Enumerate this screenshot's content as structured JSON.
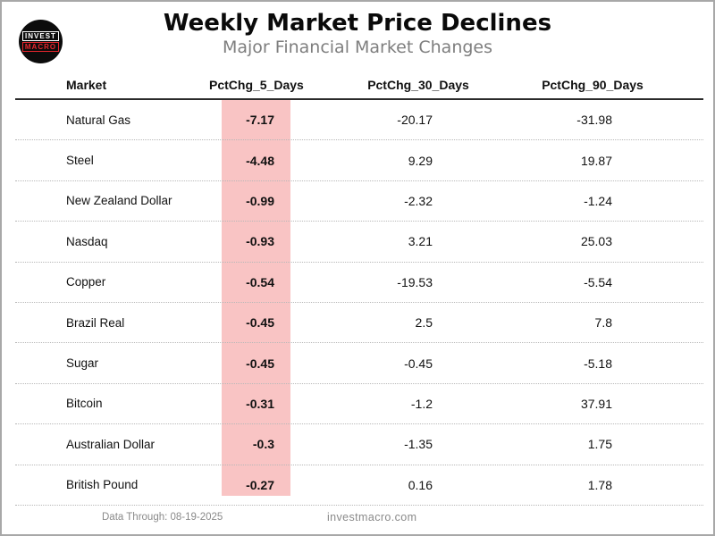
{
  "logo": {
    "line1": "INVEST",
    "line2": "MACRO"
  },
  "header": {
    "title": "Weekly Market Price Declines",
    "subtitle": "Major Financial Market Changes"
  },
  "table": {
    "columns": [
      "Market",
      "PctChg_5_Days",
      "PctChg_30_Days",
      "PctChg_90_Days"
    ],
    "highlight_color": "#f9c4c4",
    "highlighted_column": "PctChg_5_Days",
    "rows": [
      {
        "market": "Natural Gas",
        "pctchg_5_days": "-7.17",
        "pctchg_30_days": "-20.17",
        "pctchg_90_days": "-31.98"
      },
      {
        "market": "Steel",
        "pctchg_5_days": "-4.48",
        "pctchg_30_days": "9.29",
        "pctchg_90_days": "19.87"
      },
      {
        "market": "New Zealand Dollar",
        "pctchg_5_days": "-0.99",
        "pctchg_30_days": "-2.32",
        "pctchg_90_days": "-1.24"
      },
      {
        "market": "Nasdaq",
        "pctchg_5_days": "-0.93",
        "pctchg_30_days": "3.21",
        "pctchg_90_days": "25.03"
      },
      {
        "market": "Copper",
        "pctchg_5_days": "-0.54",
        "pctchg_30_days": "-19.53",
        "pctchg_90_days": "-5.54"
      },
      {
        "market": "Brazil Real",
        "pctchg_5_days": "-0.45",
        "pctchg_30_days": "2.5",
        "pctchg_90_days": "7.8"
      },
      {
        "market": "Sugar",
        "pctchg_5_days": "-0.45",
        "pctchg_30_days": "-0.45",
        "pctchg_90_days": "-5.18"
      },
      {
        "market": "Bitcoin",
        "pctchg_5_days": "-0.31",
        "pctchg_30_days": "-1.2",
        "pctchg_90_days": "37.91"
      },
      {
        "market": "Australian Dollar",
        "pctchg_5_days": "-0.3",
        "pctchg_30_days": "-1.35",
        "pctchg_90_days": "1.75"
      },
      {
        "market": "British Pound",
        "pctchg_5_days": "-0.27",
        "pctchg_30_days": "0.16",
        "pctchg_90_days": "1.78"
      }
    ]
  },
  "footer": {
    "data_through": "Data Through: 08-19-2025",
    "website": "investmacro.com"
  },
  "chart_data": {
    "type": "table",
    "title": "Weekly Market Price Declines",
    "subtitle": "Major Financial Market Changes",
    "columns": [
      "Market",
      "PctChg_5_Days",
      "PctChg_30_Days",
      "PctChg_90_Days"
    ],
    "rows": [
      [
        "Natural Gas",
        -7.17,
        -20.17,
        -31.98
      ],
      [
        "Steel",
        -4.48,
        9.29,
        19.87
      ],
      [
        "New Zealand Dollar",
        -0.99,
        -2.32,
        -1.24
      ],
      [
        "Nasdaq",
        -0.93,
        3.21,
        25.03
      ],
      [
        "Copper",
        -0.54,
        -19.53,
        -5.54
      ],
      [
        "Brazil Real",
        -0.45,
        2.5,
        7.8
      ],
      [
        "Sugar",
        -0.45,
        -0.45,
        -5.18
      ],
      [
        "Bitcoin",
        -0.31,
        -1.2,
        37.91
      ],
      [
        "Australian Dollar",
        -0.3,
        -1.35,
        1.75
      ],
      [
        "British Pound",
        -0.27,
        0.16,
        1.78
      ]
    ],
    "highlighted_column": "PctChg_5_Days",
    "highlight_color": "#f9c4c4",
    "data_through": "08-19-2025",
    "source": "investmacro.com"
  }
}
